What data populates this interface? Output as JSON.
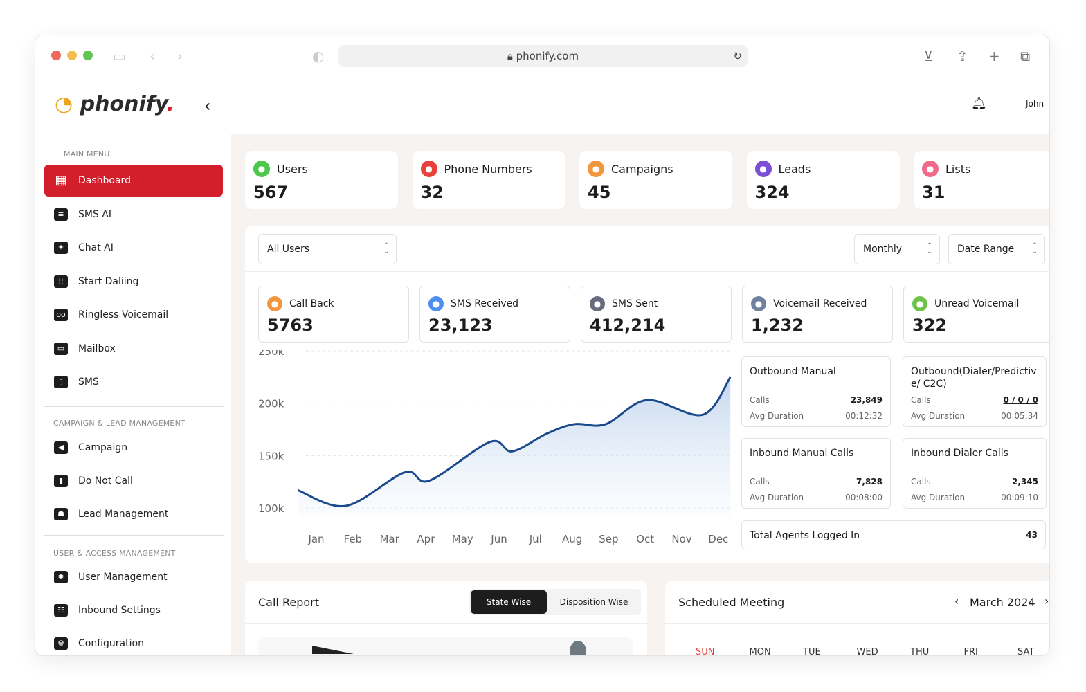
{
  "browser": {
    "url": "phonify.com"
  },
  "brand": {
    "name": "phonify",
    "dot": ".",
    "accent": "#d21f2b"
  },
  "header": {
    "user": "John"
  },
  "sidebar": {
    "sections": [
      "MAIN MENU",
      "CAMPAIGN & LEAD MANAGEMENT",
      "USER & ACCESS MANAGEMENT"
    ],
    "main": [
      {
        "label": "Dashboard",
        "icon": "dashboard-icon"
      },
      {
        "label": "SMS AI",
        "icon": "message-icon"
      },
      {
        "label": "Chat AI",
        "icon": "chat-sparkle-icon"
      },
      {
        "label": "Start Daliing",
        "icon": "dialpad-icon"
      },
      {
        "label": "Ringless Voicemail",
        "icon": "voicemail-icon"
      },
      {
        "label": "Mailbox",
        "icon": "inbox-icon"
      },
      {
        "label": "SMS",
        "icon": "phone-sms-icon"
      }
    ],
    "campaign": [
      {
        "label": "Campaign",
        "icon": "megaphone-icon"
      },
      {
        "label": "Do Not Call",
        "icon": "phone-block-icon"
      },
      {
        "label": "Lead Management",
        "icon": "people-icon"
      }
    ],
    "user": [
      {
        "label": "User Management",
        "icon": "gear-user-icon"
      },
      {
        "label": "Inbound Settings",
        "icon": "team-icon"
      },
      {
        "label": "Configuration",
        "icon": "cog-icon"
      }
    ]
  },
  "stats": [
    {
      "label": "Users",
      "value": "567",
      "color": "#4cc94c"
    },
    {
      "label": "Phone Numbers",
      "value": "32",
      "color": "#e8403a"
    },
    {
      "label": "Campaigns",
      "value": "45",
      "color": "#f2953c"
    },
    {
      "label": "Leads",
      "value": "324",
      "color": "#7a4fd6"
    },
    {
      "label": "Lists",
      "value": "31",
      "color": "#f06a8a"
    }
  ],
  "filters": {
    "users": "All Users",
    "period": "Monthly",
    "range": "Date Range"
  },
  "metrics": [
    {
      "label": "Call Back",
      "value": "5763",
      "color": "#f2953c"
    },
    {
      "label": "SMS Received",
      "value": "23,123",
      "color": "#4d8ef0"
    },
    {
      "label": "SMS Sent",
      "value": "412,214",
      "color": "#6a6a80"
    },
    {
      "label": "Voicemail Received",
      "value": "1,232",
      "color": "#7080a0"
    },
    {
      "label": "Unread Voicemail",
      "value": "322",
      "color": "#6cc24a"
    }
  ],
  "call_boxes": [
    {
      "title": "Outbound Manual",
      "calls_label": "Calls",
      "calls": "23,849",
      "dur_label": "Avg Duration",
      "dur": "00:12:32"
    },
    {
      "title": "Outbound(Dialer/Predictive/ C2C)",
      "calls_label": "Calls",
      "calls": "0 / 0 / 0",
      "dur_label": "Avg Duration",
      "dur": "00:05:34"
    },
    {
      "title": "Inbound Manual Calls",
      "calls_label": "Calls",
      "calls": "7,828",
      "dur_label": "Avg Duration",
      "dur": "00:08:00"
    },
    {
      "title": "Inbound Dialer Calls",
      "calls_label": "Calls",
      "calls": "2,345",
      "dur_label": "Avg Duration",
      "dur": "00:09:10"
    }
  ],
  "agents": {
    "label": "Total Agents Logged In",
    "value": "43"
  },
  "chart_data": {
    "type": "area",
    "categories": [
      "Jan",
      "Feb",
      "Mar",
      "Apr",
      "May",
      "Jun",
      "Jul",
      "Aug",
      "Sep",
      "Oct",
      "Nov",
      "Dec"
    ],
    "x": [
      0.49,
      1.81,
      3.42,
      4.09,
      5.75,
      6.36,
      7.31,
      8.06,
      8.92,
      10.05,
      11.57,
      12.33
    ],
    "values": [
      117000,
      102000,
      134000,
      126000,
      163000,
      154000,
      171000,
      180000,
      180000,
      203000,
      189000,
      225000
    ],
    "yticks": [
      "250k",
      "200k",
      "150k",
      "100k"
    ],
    "ylim": [
      100000,
      250000
    ],
    "grid": true,
    "color": "#1b4a8c"
  },
  "call_report": {
    "title": "Call Report",
    "tabs": [
      "State Wise",
      "Disposition Wise"
    ]
  },
  "meeting": {
    "title": "Scheduled Meeting",
    "month": "March 2024",
    "days": [
      "SUN",
      "MON",
      "TUE",
      "WED",
      "THU",
      "FRI",
      "SAT"
    ]
  }
}
